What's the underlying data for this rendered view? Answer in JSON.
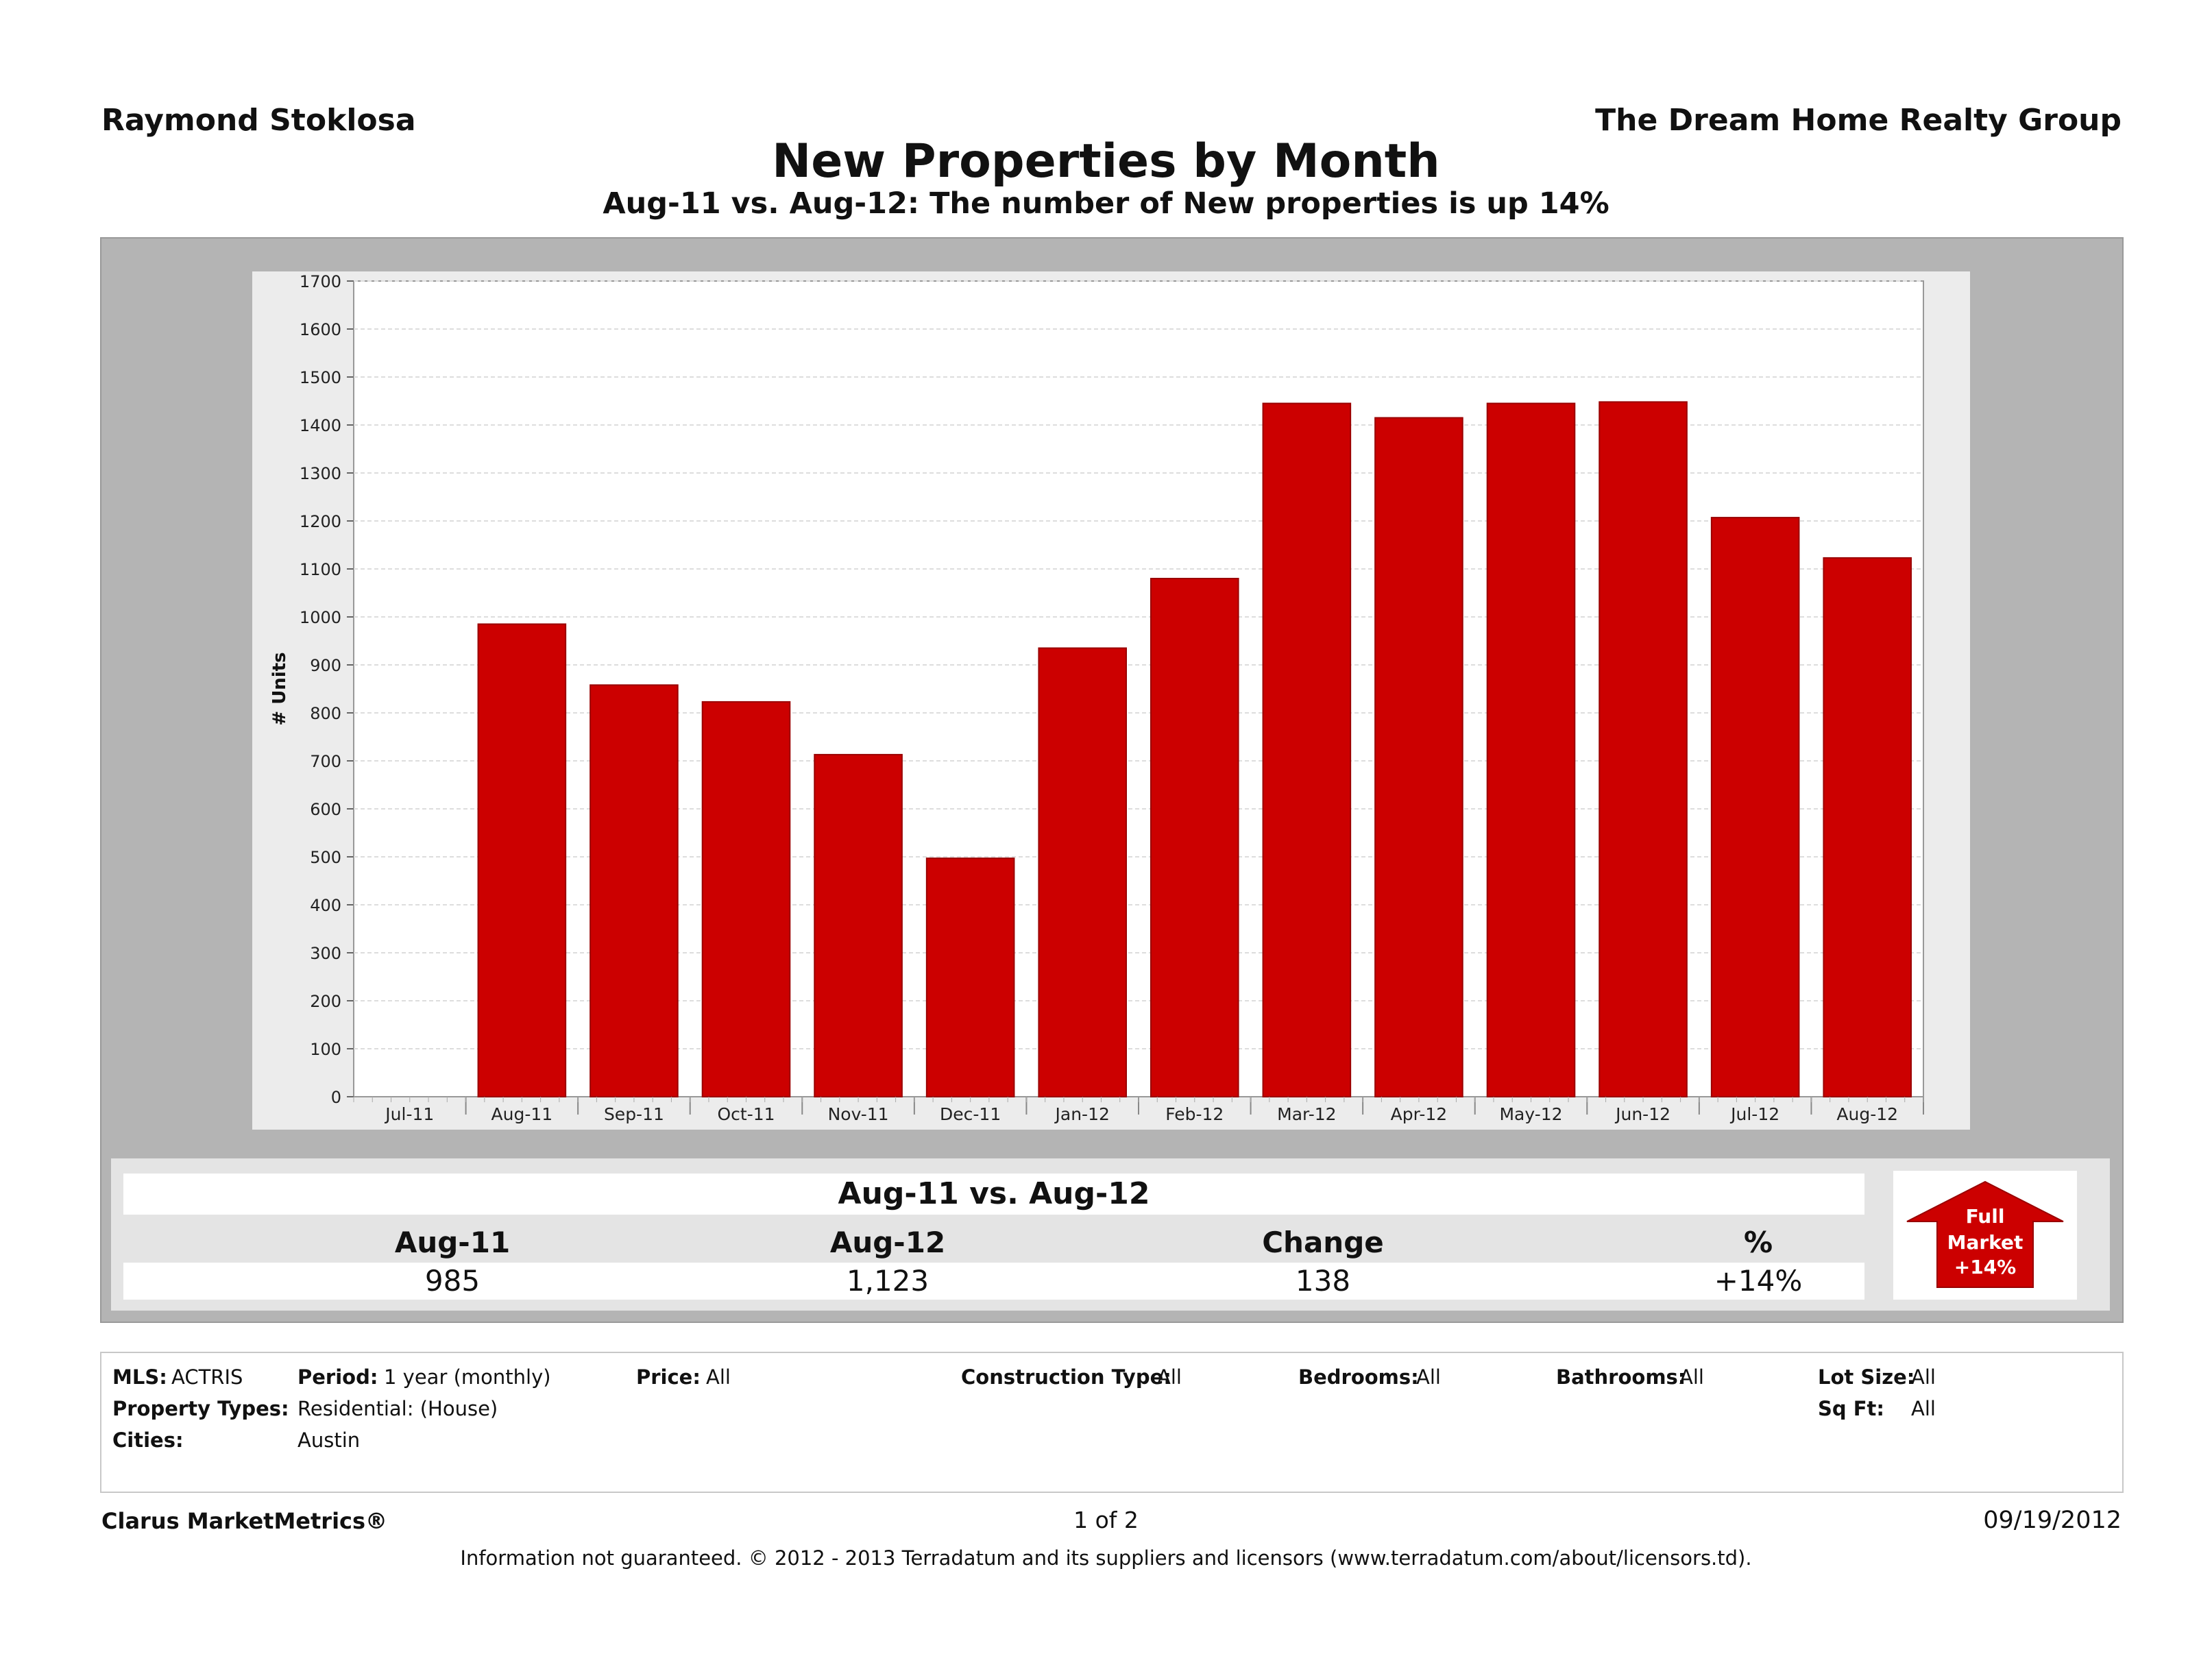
{
  "header": {
    "agent": "Raymond Stoklosa",
    "company": "The Dream Home Realty Group",
    "title": "New Properties by Month",
    "subtitle": "Aug-11 vs. Aug-12: The number of New properties is up 14%"
  },
  "chart_data": {
    "type": "bar",
    "categories": [
      "Jul-11",
      "Aug-11",
      "Sep-11",
      "Oct-11",
      "Nov-11",
      "Dec-11",
      "Jan-12",
      "Feb-12",
      "Mar-12",
      "Apr-12",
      "May-12",
      "Jun-12",
      "Jul-12",
      "Aug-12"
    ],
    "values": [
      null,
      985,
      858,
      823,
      713,
      497,
      935,
      1080,
      1445,
      1415,
      1445,
      1448,
      1207,
      1123
    ],
    "ylabel": "# Units",
    "xlabel": "",
    "ylim": [
      0,
      1700
    ],
    "yticks": [
      0,
      100,
      200,
      300,
      400,
      500,
      600,
      700,
      800,
      900,
      1000,
      1100,
      1200,
      1300,
      1400,
      1500,
      1600,
      1700
    ],
    "grid": true,
    "bar_color": "#cc0000"
  },
  "summary": {
    "title": "Aug-11 vs. Aug-12",
    "headers": [
      "Aug-11",
      "Aug-12",
      "Change",
      "%"
    ],
    "values": [
      "985",
      "1,123",
      "138",
      "+14%"
    ],
    "badge": {
      "line1": "Full",
      "line2": "Market",
      "line3": "+14%",
      "color": "#cc0000"
    }
  },
  "criteria": {
    "mls_label": "MLS:",
    "mls_value": "ACTRIS",
    "period_label": "Period:",
    "period_value": "1 year (monthly)",
    "price_label": "Price:",
    "price_value": "All",
    "construction_label": "Construction Type:",
    "construction_value": "All",
    "bedrooms_label": "Bedrooms:",
    "bedrooms_value": "All",
    "bathrooms_label": "Bathrooms:",
    "bathrooms_value": "All",
    "lotsize_label": "Lot Size:",
    "lotsize_value": "All",
    "proptypes_label": "Property Types:",
    "proptypes_value": "Residential: (House)",
    "sqft_label": "Sq Ft:",
    "sqft_value": "All",
    "cities_label": "Cities:",
    "cities_value": "Austin"
  },
  "footer": {
    "brand": "Clarus MarketMetrics®",
    "page": "1 of 2",
    "date": "09/19/2012",
    "disclaimer": "Information not guaranteed.  © 2012 - 2013 Terradatum and its suppliers and licensors (www.terradatum.com/about/licensors.td)."
  }
}
